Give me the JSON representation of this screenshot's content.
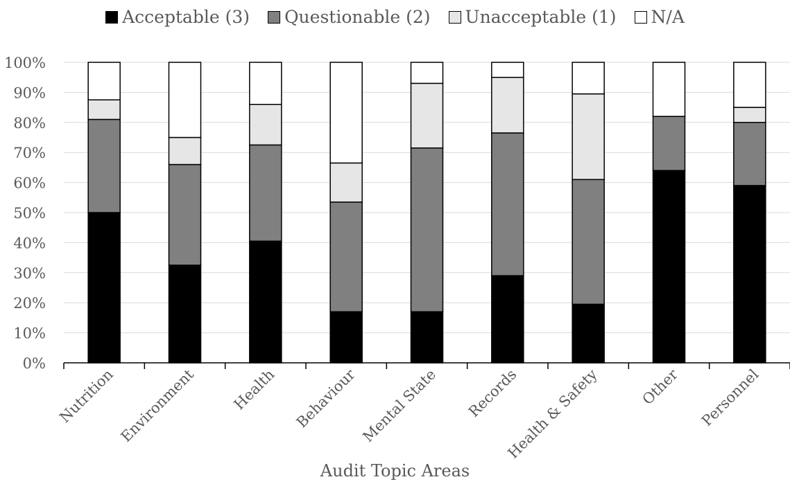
{
  "chart_data": {
    "type": "bar",
    "stacked": true,
    "xlabel": "Audit Topic Areas",
    "ylabel": "",
    "ylim": [
      0,
      100
    ],
    "yticks": [
      "0%",
      "10%",
      "20%",
      "30%",
      "40%",
      "50%",
      "60%",
      "70%",
      "80%",
      "90%",
      "100%"
    ],
    "grid": true,
    "legend_position": "top",
    "categories": [
      "Nutrition",
      "Environment",
      "Health",
      "Behaviour",
      "Mental State",
      "Records",
      "Health & Safety",
      "Other",
      "Personnel"
    ],
    "series": [
      {
        "name": "Acceptable (3)",
        "color": "#000000",
        "values": [
          50,
          32.5,
          40.5,
          17,
          17,
          29,
          19.5,
          64,
          59
        ]
      },
      {
        "name": "Questionable (2)",
        "color": "#808080",
        "values": [
          31,
          33.5,
          32,
          36.5,
          54.5,
          47.5,
          41.5,
          18,
          21
        ]
      },
      {
        "name": "Unacceptable (1)",
        "color": "#e6e6e6",
        "values": [
          6.5,
          9,
          13.5,
          13,
          21.5,
          18.5,
          28.5,
          0,
          5
        ]
      },
      {
        "name": "N/A",
        "color": "#ffffff",
        "values": [
          12.5,
          25,
          14,
          33.5,
          7,
          5,
          10.5,
          18,
          15
        ]
      }
    ]
  }
}
